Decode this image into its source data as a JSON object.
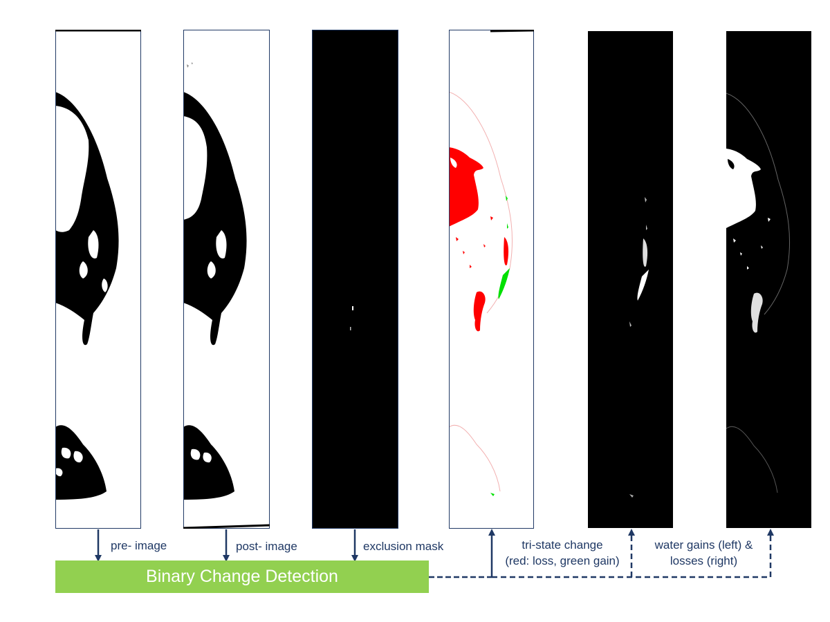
{
  "process": {
    "label": "Binary Change Detection",
    "color": "#92d050"
  },
  "inputs": [
    {
      "label": "pre- image"
    },
    {
      "label": "post- image"
    },
    {
      "label": "exclusion mask"
    }
  ],
  "outputs": [
    {
      "label_line1": "tri-state change",
      "label_line2": "(red: loss, green gain)"
    },
    {
      "label_line1": "water gains (left) &",
      "label_line2": "losses (right)"
    }
  ],
  "colors": {
    "arrow": "#1f3864",
    "text": "#1f3864",
    "loss": "#ff0000",
    "gain": "#00ff00"
  }
}
